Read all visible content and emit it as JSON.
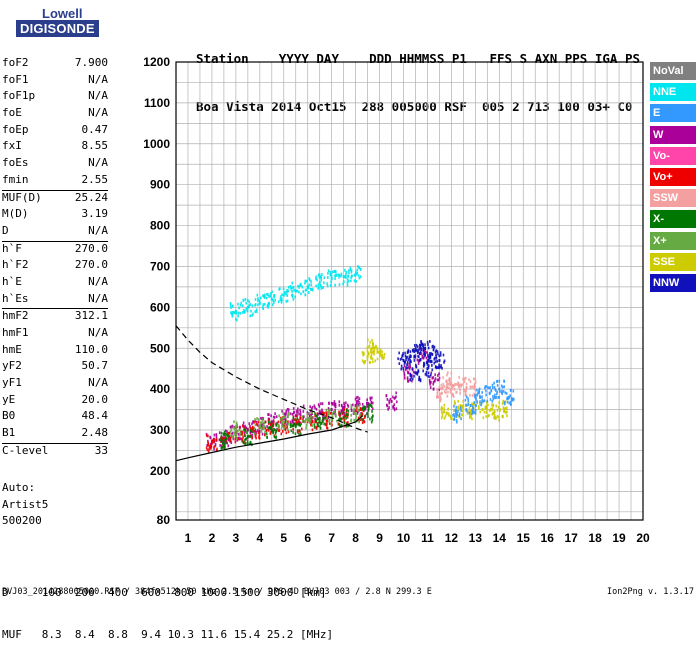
{
  "logo": {
    "line1": "Lowell",
    "line2": "DIGISONDE"
  },
  "header": {
    "line1": "Station    YYYY DAY    DDD HHMMSS P1   FFS S AXN PPS IGA PS",
    "line2": "Boa Vista 2014 Oct15  288 005000 RSF  005 2 713 100 03+ C0"
  },
  "params": [
    [
      [
        "foF2",
        "7.900"
      ],
      [
        "foF1",
        "N/A"
      ],
      [
        "foF1p",
        "N/A"
      ],
      [
        "foE",
        "N/A"
      ],
      [
        "foEp",
        "0.47"
      ],
      [
        "fxI",
        "8.55"
      ],
      [
        "foEs",
        "N/A"
      ],
      [
        "fmin",
        "2.55"
      ]
    ],
    [
      [
        "MUF(D)",
        "25.24"
      ],
      [
        "M(D)",
        "3.19"
      ],
      [
        "D",
        "N/A"
      ]
    ],
    [
      [
        "h`F",
        "270.0"
      ],
      [
        "h`F2",
        "270.0"
      ],
      [
        "h`E",
        "N/A"
      ],
      [
        "h`Es",
        "N/A"
      ]
    ],
    [
      [
        "hmF2",
        "312.1"
      ],
      [
        "hmF1",
        "N/A"
      ],
      [
        "hmE",
        "110.0"
      ],
      [
        "yF2",
        "50.7"
      ],
      [
        "yF1",
        "N/A"
      ],
      [
        "yE",
        "20.0"
      ],
      [
        "B0",
        "48.4"
      ],
      [
        "B1",
        "2.48"
      ]
    ],
    [
      [
        "C-level",
        "33"
      ]
    ]
  ],
  "auto": {
    "l1": "Auto:",
    "l2": "Artist5",
    "l3": "500200"
  },
  "dmuf": {
    "row1": "D     100  200  400  600  800 1000 1500 3000 [km]",
    "row2": "MUF   8.3  8.4  8.8  9.4 10.3 11.6 15.4 25.2 [MHz]"
  },
  "footer": "BVJ03_2014288005000.RSF / 384fx512h 50 kHz 2.5 km / DPS-4D BVJ03 003 / 2.8 N 299.3 E",
  "version": "Ion2Png v. 1.3.17",
  "legend": [
    {
      "label": "NoVal",
      "color": "#808080"
    },
    {
      "label": "NNE",
      "color": "#00e5ee"
    },
    {
      "label": "E",
      "color": "#3399ff"
    },
    {
      "label": "W",
      "color": "#aa0099"
    },
    {
      "label": "Vo-",
      "color": "#ff44aa"
    },
    {
      "label": "Vo+",
      "color": "#ee0000"
    },
    {
      "label": "SSW",
      "color": "#f4a0a0"
    },
    {
      "label": "X-",
      "color": "#007700"
    },
    {
      "label": "X+",
      "color": "#66aa44"
    },
    {
      "label": "SSE",
      "color": "#cccc00"
    },
    {
      "label": "NNW",
      "color": "#1111bb"
    }
  ],
  "chart_data": {
    "type": "scatter",
    "title": "",
    "xlabel": "",
    "ylabel": "",
    "xlim": [
      0.5,
      20
    ],
    "ylim": [
      80,
      1200
    ],
    "x_ticks": [
      1,
      2,
      3,
      4,
      5,
      6,
      7,
      8,
      9,
      10,
      11,
      12,
      13,
      14,
      15,
      16,
      17,
      18,
      19,
      20
    ],
    "y_ticks": [
      100,
      200,
      300,
      400,
      500,
      600,
      700,
      800,
      900,
      1000,
      1100,
      1200
    ],
    "y_labeled_ticks": [
      80,
      200,
      300,
      400,
      500,
      600,
      700,
      800,
      900,
      1000,
      1100,
      1200
    ],
    "grid": true,
    "series": [
      {
        "name": "W",
        "points": [
          [
            2.0,
            272
          ],
          [
            2.5,
            280
          ],
          [
            3.0,
            290
          ],
          [
            3.5,
            300
          ],
          [
            4.0,
            310
          ],
          [
            4.5,
            320
          ],
          [
            5.0,
            330
          ],
          [
            5.5,
            335
          ],
          [
            6.0,
            340
          ],
          [
            6.5,
            345
          ],
          [
            7.0,
            350
          ],
          [
            7.5,
            355
          ],
          [
            8.0,
            360
          ],
          [
            8.5,
            360
          ],
          [
            9.5,
            370
          ],
          [
            10.2,
            440
          ],
          [
            10.8,
            480
          ],
          [
            11.3,
            420
          ]
        ]
      },
      {
        "name": "Vo+",
        "points": [
          [
            2.0,
            268
          ],
          [
            2.6,
            278
          ],
          [
            3.2,
            290
          ],
          [
            3.8,
            300
          ],
          [
            4.4,
            305
          ],
          [
            5.0,
            310
          ],
          [
            5.6,
            315
          ],
          [
            6.2,
            320
          ],
          [
            6.8,
            325
          ],
          [
            7.5,
            330
          ],
          [
            8.2,
            335
          ]
        ]
      },
      {
        "name": "NNE",
        "points": [
          [
            3.0,
            590
          ],
          [
            3.5,
            600
          ],
          [
            4.0,
            610
          ],
          [
            4.5,
            620
          ],
          [
            5.0,
            630
          ],
          [
            5.5,
            640
          ],
          [
            6.0,
            650
          ],
          [
            6.5,
            660
          ],
          [
            7.0,
            670
          ],
          [
            7.5,
            675
          ],
          [
            8.0,
            680
          ]
        ]
      },
      {
        "name": "NNW",
        "points": [
          [
            10.0,
            470
          ],
          [
            10.3,
            480
          ],
          [
            10.6,
            490
          ],
          [
            10.9,
            500
          ],
          [
            11.2,
            485
          ],
          [
            11.5,
            470
          ],
          [
            10.5,
            440
          ],
          [
            11.0,
            450
          ]
        ]
      },
      {
        "name": "SSE",
        "points": [
          [
            8.5,
            480
          ],
          [
            9.0,
            490
          ],
          [
            8.7,
            500
          ],
          [
            11.8,
            340
          ],
          [
            12.3,
            350
          ],
          [
            12.8,
            345
          ],
          [
            13.3,
            350
          ],
          [
            13.8,
            345
          ],
          [
            14.2,
            350
          ]
        ]
      },
      {
        "name": "SSW",
        "points": [
          [
            11.6,
            390
          ],
          [
            12.0,
            400
          ],
          [
            12.4,
            410
          ],
          [
            12.8,
            405
          ],
          [
            11.8,
            420
          ]
        ]
      },
      {
        "name": "E",
        "points": [
          [
            12.2,
            340
          ],
          [
            12.8,
            360
          ],
          [
            13.2,
            380
          ],
          [
            13.6,
            390
          ],
          [
            14.0,
            400
          ],
          [
            14.4,
            380
          ]
        ]
      },
      {
        "name": "X-",
        "points": [
          [
            2.5,
            275
          ],
          [
            3.5,
            285
          ],
          [
            4.5,
            300
          ],
          [
            5.5,
            310
          ],
          [
            6.5,
            320
          ],
          [
            7.5,
            330
          ],
          [
            8.5,
            340
          ]
        ]
      },
      {
        "name": "X+",
        "points": [
          [
            3.0,
            300
          ],
          [
            4.0,
            310
          ],
          [
            5.0,
            320
          ],
          [
            6.0,
            325
          ],
          [
            7.0,
            330
          ],
          [
            8.0,
            340
          ]
        ]
      }
    ],
    "curves": [
      {
        "name": "fit-dashed",
        "style": "dashed",
        "points": [
          [
            0.5,
            555
          ],
          [
            1.0,
            520
          ],
          [
            1.5,
            490
          ],
          [
            2.0,
            465
          ],
          [
            3.0,
            430
          ],
          [
            4.0,
            400
          ],
          [
            5.0,
            375
          ],
          [
            6.0,
            350
          ],
          [
            7.0,
            330
          ],
          [
            8.0,
            305
          ],
          [
            8.5,
            295
          ]
        ]
      },
      {
        "name": "fit-solid",
        "style": "solid",
        "points": [
          [
            0.5,
            225
          ],
          [
            1.0,
            232
          ],
          [
            2.0,
            245
          ],
          [
            3.0,
            258
          ],
          [
            4.0,
            268
          ],
          [
            5.0,
            278
          ],
          [
            6.0,
            290
          ],
          [
            7.0,
            300
          ],
          [
            7.5,
            310
          ],
          [
            8.0,
            320
          ],
          [
            8.3,
            335
          ]
        ]
      }
    ]
  }
}
